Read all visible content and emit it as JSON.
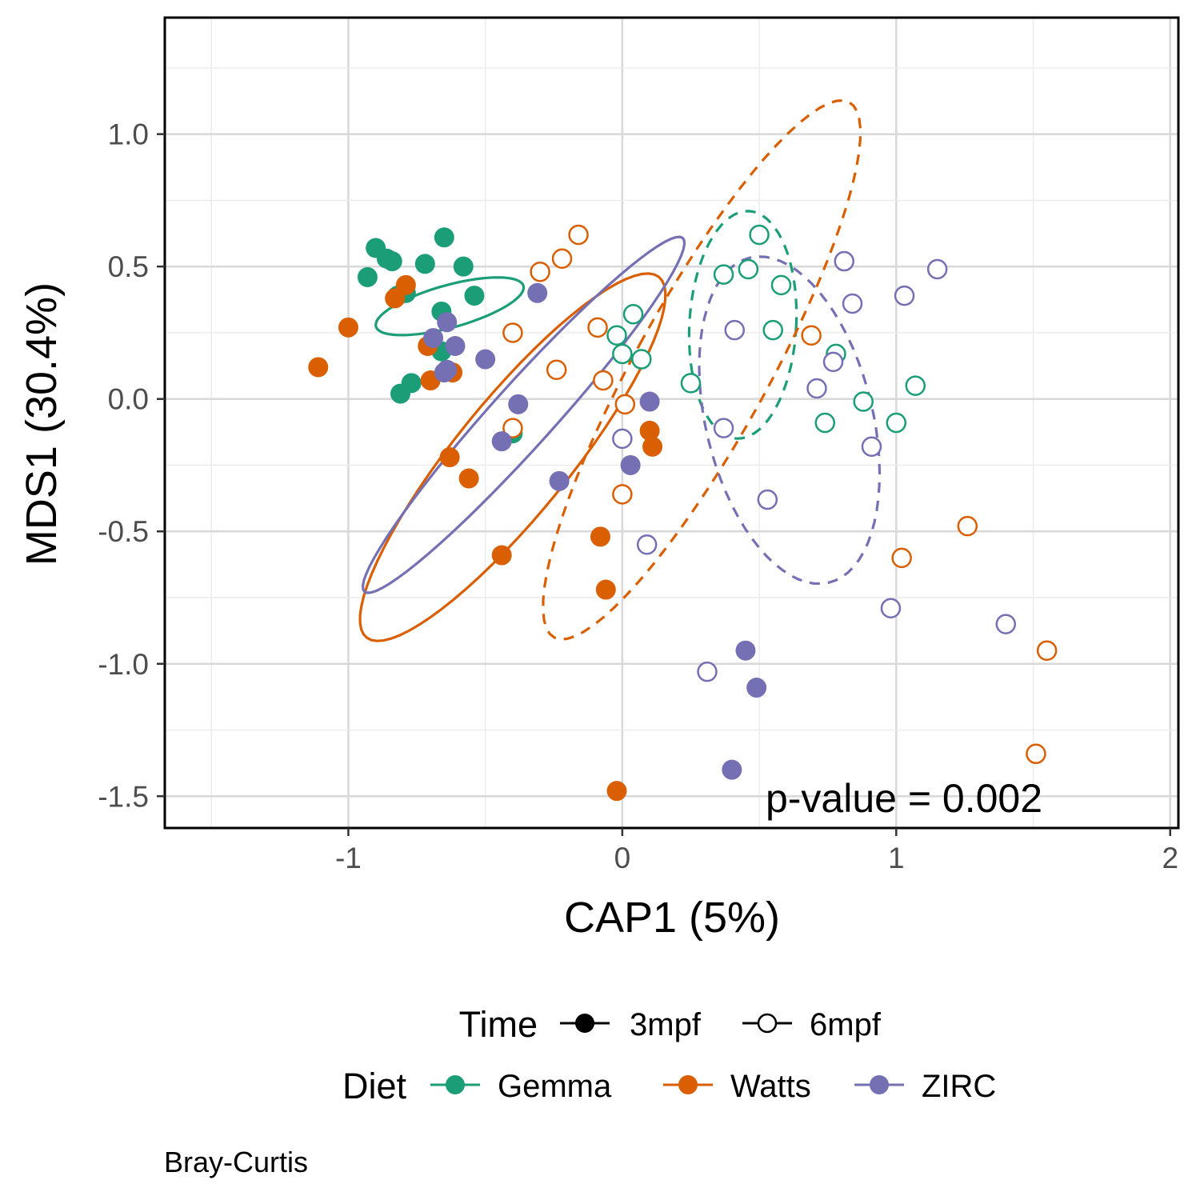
{
  "chart_data": {
    "type": "scatter",
    "title": "",
    "xlabel": "CAP1 (5%)",
    "ylabel": "MDS1 (30.4%)",
    "xlim": [
      -1.67,
      2.03
    ],
    "ylim": [
      -1.62,
      1.44
    ],
    "x_ticks": [
      -1,
      0,
      1,
      2
    ],
    "x_tick_labels": [
      "-1",
      "0",
      "1",
      "2"
    ],
    "y_ticks": [
      1.0,
      0.5,
      0.0,
      -0.5,
      -1.0,
      -1.5
    ],
    "y_tick_labels": [
      "1.0",
      "0.5",
      "0.0",
      "-0.5",
      "-1.0",
      "-1.5"
    ],
    "grid": true,
    "annotation": "p-value = 0.002",
    "caption": "Bray-Curtis",
    "legend": {
      "placement": "bottom",
      "time_title": "Time",
      "time_items": [
        {
          "label": "3mpf",
          "filled": true
        },
        {
          "label": "6mpf",
          "filled": false
        }
      ],
      "diet_title": "Diet",
      "diet_items": [
        {
          "label": "Gemma",
          "color": "#1b9e77"
        },
        {
          "label": "Watts",
          "color": "#d95f02"
        },
        {
          "label": "ZIRC",
          "color": "#7570b3"
        }
      ]
    },
    "series": [
      {
        "diet": "Gemma",
        "time": "3mpf",
        "color": "#1b9e77",
        "filled": true,
        "points": [
          [
            -0.9,
            0.57
          ],
          [
            -0.86,
            0.53
          ],
          [
            -0.84,
            0.52
          ],
          [
            -0.93,
            0.46
          ],
          [
            -0.72,
            0.51
          ],
          [
            -0.65,
            0.61
          ],
          [
            -0.58,
            0.5
          ],
          [
            -0.54,
            0.39
          ],
          [
            -0.79,
            0.4
          ],
          [
            -0.82,
            0.39
          ],
          [
            -0.66,
            0.33
          ],
          [
            -0.66,
            0.18
          ],
          [
            -0.77,
            0.06
          ],
          [
            -0.81,
            0.02
          ],
          [
            -0.4,
            -0.13
          ]
        ]
      },
      {
        "diet": "Gemma",
        "time": "6mpf",
        "color": "#1b9e77",
        "filled": true,
        "points": []
      },
      {
        "diet": "Gemma",
        "time": "6mpf",
        "color": "#1b9e77",
        "filled": false,
        "points": [
          [
            0.5,
            0.62
          ],
          [
            0.46,
            0.49
          ],
          [
            0.37,
            0.47
          ],
          [
            0.58,
            0.43
          ],
          [
            0.04,
            0.32
          ],
          [
            -0.02,
            0.24
          ],
          [
            0.0,
            0.17
          ],
          [
            0.07,
            0.15
          ],
          [
            0.25,
            0.06
          ],
          [
            0.55,
            0.26
          ],
          [
            0.78,
            0.17
          ],
          [
            1.07,
            0.05
          ],
          [
            0.88,
            -0.01
          ],
          [
            1.0,
            -0.09
          ],
          [
            0.74,
            -0.09
          ]
        ]
      },
      {
        "diet": "Watts",
        "time": "3mpf",
        "color": "#d95f02",
        "filled": true,
        "points": [
          [
            -0.79,
            0.43
          ],
          [
            -0.83,
            0.38
          ],
          [
            -1.0,
            0.27
          ],
          [
            -1.11,
            0.12
          ],
          [
            -0.71,
            0.2
          ],
          [
            -0.62,
            0.1
          ],
          [
            -0.7,
            0.07
          ],
          [
            -0.63,
            -0.22
          ],
          [
            -0.56,
            -0.3
          ],
          [
            0.1,
            -0.12
          ],
          [
            0.11,
            -0.18
          ],
          [
            -0.44,
            -0.59
          ],
          [
            -0.08,
            -0.52
          ],
          [
            -0.06,
            -0.72
          ],
          [
            -0.02,
            -1.48
          ]
        ]
      },
      {
        "diet": "Watts",
        "time": "6mpf",
        "color": "#d95f02",
        "filled": false,
        "points": [
          [
            -0.16,
            0.62
          ],
          [
            -0.22,
            0.53
          ],
          [
            -0.3,
            0.48
          ],
          [
            -0.4,
            0.25
          ],
          [
            -0.09,
            0.27
          ],
          [
            -0.24,
            0.11
          ],
          [
            -0.07,
            0.07
          ],
          [
            0.01,
            -0.02
          ],
          [
            -0.4,
            -0.11
          ],
          [
            0.0,
            -0.36
          ],
          [
            0.69,
            0.24
          ],
          [
            1.26,
            -0.48
          ],
          [
            1.02,
            -0.6
          ],
          [
            1.55,
            -0.95
          ],
          [
            1.51,
            -1.34
          ]
        ]
      },
      {
        "diet": "ZIRC",
        "time": "3mpf",
        "color": "#7570b3",
        "filled": true,
        "points": [
          [
            -0.31,
            0.4
          ],
          [
            -0.64,
            0.29
          ],
          [
            -0.69,
            0.23
          ],
          [
            -0.61,
            0.2
          ],
          [
            -0.5,
            0.15
          ],
          [
            -0.64,
            0.11
          ],
          [
            -0.65,
            0.1
          ],
          [
            -0.38,
            -0.02
          ],
          [
            -0.44,
            -0.16
          ],
          [
            0.1,
            -0.01
          ],
          [
            0.03,
            -0.25
          ],
          [
            -0.23,
            -0.31
          ],
          [
            0.45,
            -0.95
          ],
          [
            0.49,
            -1.09
          ],
          [
            0.4,
            -1.4
          ]
        ]
      },
      {
        "diet": "ZIRC",
        "time": "6mpf",
        "color": "#7570b3",
        "filled": false,
        "points": [
          [
            0.81,
            0.52
          ],
          [
            1.15,
            0.49
          ],
          [
            1.03,
            0.39
          ],
          [
            0.84,
            0.36
          ],
          [
            0.41,
            0.26
          ],
          [
            0.77,
            0.14
          ],
          [
            0.71,
            0.04
          ],
          [
            0.91,
            -0.18
          ],
          [
            0.37,
            -0.11
          ],
          [
            0.0,
            -0.15
          ],
          [
            0.53,
            -0.38
          ],
          [
            0.09,
            -0.55
          ],
          [
            0.98,
            -0.79
          ],
          [
            1.4,
            -0.85
          ],
          [
            0.31,
            -1.03
          ]
        ]
      }
    ],
    "ellipses": [
      {
        "diet": "Gemma",
        "time": "3mpf",
        "color": "#1b9e77",
        "dashed": false,
        "cx": -0.63,
        "cy": 0.35,
        "rx": 0.16,
        "ry": 0.56,
        "rotation_deg": -74
      },
      {
        "diet": "Gemma",
        "time": "6mpf",
        "color": "#1b9e77",
        "dashed": true,
        "cx": 0.44,
        "cy": 0.28,
        "rx": 0.39,
        "ry": 0.86,
        "rotation_deg": -3
      },
      {
        "diet": "Watts",
        "time": "3mpf",
        "color": "#d95f02",
        "dashed": false,
        "cx": -0.4,
        "cy": -0.22,
        "rx": 0.42,
        "ry": 1.73,
        "rotation_deg": 142
      },
      {
        "diet": "Watts",
        "time": "6mpf",
        "color": "#d95f02",
        "dashed": true,
        "cx": 0.29,
        "cy": 0.11,
        "rx": 0.49,
        "ry": 2.29,
        "rotation_deg": 152
      },
      {
        "diet": "ZIRC",
        "time": "3mpf",
        "color": "#7570b3",
        "dashed": false,
        "cx": -0.36,
        "cy": -0.06,
        "rx": 0.23,
        "ry": 1.77,
        "rotation_deg": 139
      },
      {
        "diet": "ZIRC",
        "time": "6mpf",
        "color": "#7570b3",
        "dashed": true,
        "cx": 0.61,
        "cy": -0.08,
        "rx": 0.61,
        "ry": 1.26,
        "rotation_deg": 13
      }
    ]
  }
}
